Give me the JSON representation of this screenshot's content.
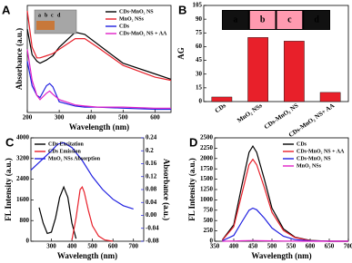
{
  "chart_data": [
    {
      "type": "line",
      "panel_label": "A",
      "xlabel": "Wavelength (nm)",
      "ylabel": "Absorbance (a.u.)",
      "xlim": [
        200,
        650
      ],
      "xticks": [
        200,
        300,
        400,
        500,
        600
      ],
      "ylim": [
        0,
        1
      ],
      "legend": "upper right",
      "inset_labels": [
        "a",
        "b",
        "c",
        "d"
      ],
      "x": [
        200,
        215,
        230,
        240,
        260,
        270,
        280,
        300,
        350,
        380,
        420,
        500,
        600,
        650
      ],
      "series": [
        {
          "name": "CDs-MnO₂ NS",
          "color": "#000000",
          "values": [
            0.78,
            0.54,
            0.48,
            0.46,
            0.49,
            0.51,
            0.53,
            0.61,
            0.75,
            0.73,
            0.64,
            0.46,
            0.36,
            0.31
          ]
        },
        {
          "name": "MnO₂ NSs",
          "color": "#e8202a",
          "values": [
            0.95,
            0.61,
            0.51,
            0.51,
            0.53,
            0.54,
            0.55,
            0.59,
            0.69,
            0.69,
            0.61,
            0.44,
            0.33,
            0.3
          ]
        },
        {
          "name": "CDs",
          "color": "#2020e0",
          "values": [
            0.48,
            0.25,
            0.16,
            0.14,
            0.25,
            0.27,
            0.24,
            0.1,
            0.06,
            0.05,
            0.05,
            0.04,
            0.03,
            0.03
          ]
        },
        {
          "name": "CDs-MnO₂ NS + AA",
          "color": "#e020c8",
          "values": [
            0.59,
            0.3,
            0.16,
            0.12,
            0.18,
            0.2,
            0.17,
            0.12,
            0.07,
            0.06,
            0.05,
            0.05,
            0.04,
            0.04
          ]
        }
      ]
    },
    {
      "type": "bar",
      "panel_label": "B",
      "ylabel": "AG",
      "color": "#e8202a",
      "categories": [
        "CDs",
        "MnO₂ NSs",
        "CDs-MnO₂ NS",
        "CDs-MnO₂ NS+ AA"
      ],
      "values": [
        5,
        70,
        66,
        10
      ],
      "ylim": [
        0,
        105
      ],
      "yticks": [
        0,
        15,
        30,
        45,
        60,
        75,
        90,
        105
      ],
      "inset_labels": [
        "a",
        "b",
        "c",
        "d"
      ]
    },
    {
      "type": "line",
      "panel_label": "C",
      "xlabel": "Wavelength (nm)",
      "ylabel": "FL Intensity (a.u.)",
      "y2label": "Absorbance (a.u.)",
      "xlim": [
        200,
        750
      ],
      "xticks": [
        300,
        400,
        500,
        600,
        700
      ],
      "ylim": [
        0,
        4000
      ],
      "yticks": [
        0,
        800,
        1600,
        2400,
        3200,
        4000
      ],
      "y2lim": [
        -0.08,
        0.24
      ],
      "y2ticks": [
        -0.08,
        -0.04,
        {
          "value": 0,
          "label": "0.00"
        },
        0.04,
        0.08,
        0.12,
        0.16,
        0.2,
        0.24
      ],
      "legend": "upper left",
      "series": [
        {
          "name": "CDs Excitation",
          "color": "#000000",
          "x": [
            240,
            260,
            280,
            300,
            320,
            340,
            360,
            380,
            400,
            420
          ],
          "values": [
            1300,
            700,
            300,
            350,
            900,
            1700,
            2100,
            1700,
            700,
            100
          ]
        },
        {
          "name": "CDs Emission",
          "color": "#e8202a",
          "x": [
            400,
            420,
            440,
            450,
            460,
            480,
            500,
            530,
            560,
            600
          ],
          "values": [
            50,
            900,
            2000,
            2100,
            1900,
            1200,
            600,
            200,
            50,
            0
          ]
        },
        {
          "name": "MnO₂ NSs Absorption",
          "color": "#2020e0",
          "axis": "y2",
          "x": [
            200,
            250,
            300,
            330,
            360,
            400,
            450,
            500,
            550,
            600,
            650,
            700
          ],
          "values": [
            0.14,
            0.17,
            0.2,
            0.22,
            0.225,
            0.21,
            0.17,
            0.12,
            0.08,
            0.05,
            0.03,
            0.02
          ]
        }
      ]
    },
    {
      "type": "line",
      "panel_label": "D",
      "xlabel": "Wavelength (nm)",
      "ylabel": "FL Intensity (a.u.)",
      "xlim": [
        350,
        700
      ],
      "xticks": [
        350,
        400,
        450,
        500,
        550,
        600,
        650,
        700
      ],
      "ylim": [
        0,
        2500
      ],
      "yticks": [
        0,
        250,
        500,
        750,
        1000,
        1250,
        1500,
        1750,
        2000,
        2250,
        2500
      ],
      "legend": "upper right",
      "x": [
        370,
        400,
        420,
        440,
        450,
        460,
        480,
        500,
        530,
        560,
        600,
        650,
        700
      ],
      "series": [
        {
          "name": "CDs",
          "color": "#000000",
          "values": [
            30,
            400,
            1300,
            2150,
            2300,
            2150,
            1500,
            800,
            300,
            100,
            20,
            0,
            0
          ]
        },
        {
          "name": "CDs-MnO₂ NS + AA",
          "color": "#e8202a",
          "values": [
            25,
            350,
            1100,
            1850,
            1980,
            1850,
            1300,
            700,
            260,
            90,
            15,
            0,
            0
          ]
        },
        {
          "name": "CDs-MnO₂ NS",
          "color": "#2020e0",
          "values": [
            10,
            140,
            450,
            750,
            800,
            760,
            560,
            320,
            120,
            40,
            8,
            0,
            0
          ]
        },
        {
          "name": "MnO₂ NSs",
          "color": "#e020c8",
          "values": [
            0,
            5,
            10,
            15,
            15,
            15,
            12,
            8,
            5,
            2,
            0,
            0,
            0
          ]
        }
      ]
    }
  ]
}
